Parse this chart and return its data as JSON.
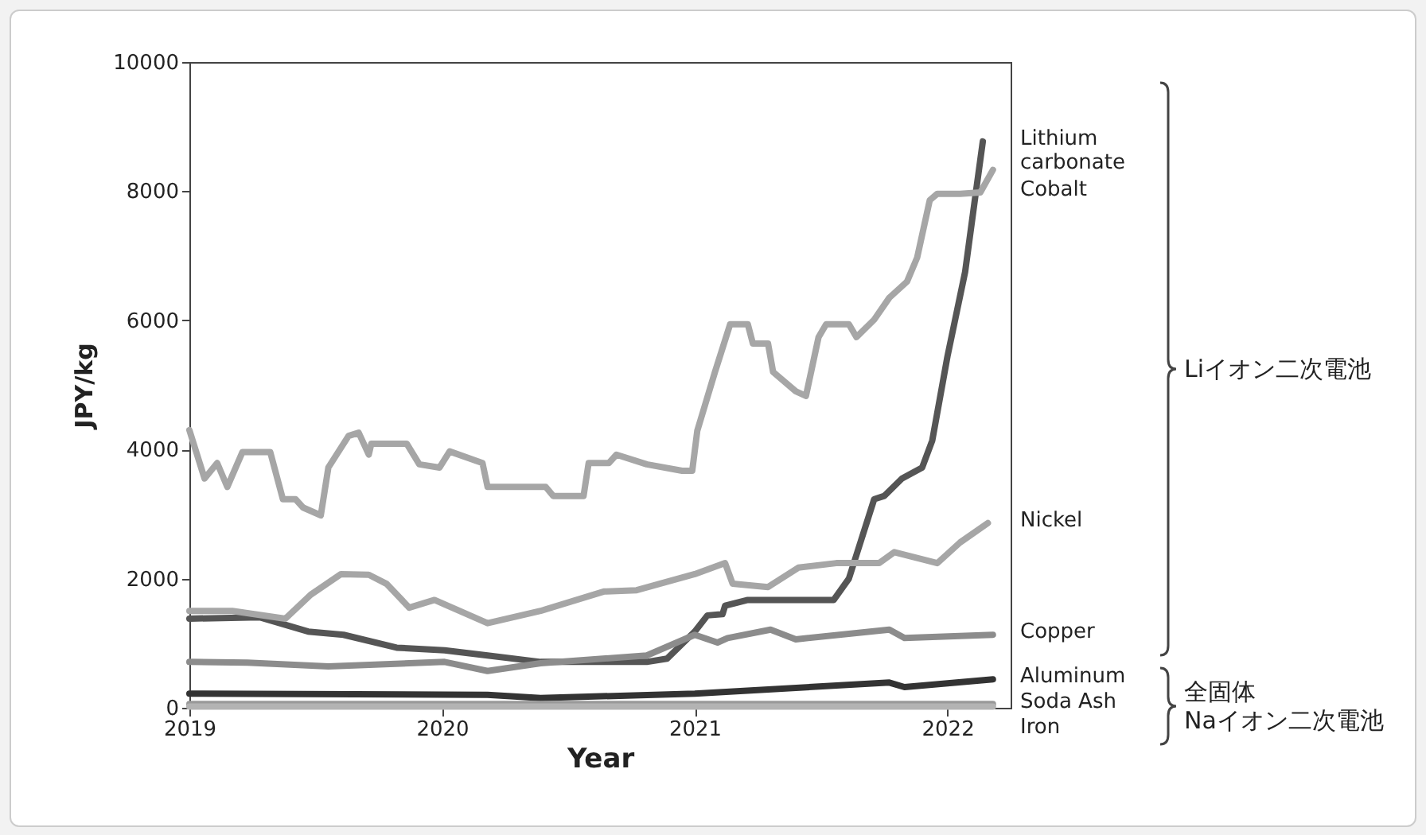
{
  "chart_data": {
    "type": "line",
    "xlabel": "Year",
    "ylabel": "JPY/kg",
    "xlim": [
      2019,
      2022.25
    ],
    "xticks": [
      2019,
      2020,
      2021,
      2022
    ],
    "ylim": [
      0,
      10000
    ],
    "yticks": [
      0,
      2000,
      4000,
      6000,
      8000,
      10000
    ],
    "grid": false,
    "legend": false,
    "marker": "none",
    "line_style": "solid",
    "annotations": [
      "Liイオン二次電池",
      "全固体\nNaイオン二次電池"
    ],
    "series": [
      {
        "name": "Lithium carbonate",
        "color": "#555555",
        "x": [
          2019,
          2019.28,
          2019.47,
          2019.61,
          2019.82,
          2020.01,
          2020.18,
          2020.39,
          2020.81,
          2020.89,
          2021,
          2021.05,
          2021.11,
          2021.12,
          2021.21,
          2021.55,
          2021.61,
          2021.71,
          2021.75,
          2021.82,
          2021.9,
          2021.94,
          2022,
          2022.07,
          2022.11,
          2022.14
        ],
        "values": [
          1380,
          1400,
          1180,
          1130,
          930,
          890,
          810,
          710,
          710,
          760,
          1180,
          1430,
          1450,
          1580,
          1670,
          1670,
          2000,
          3230,
          3280,
          3550,
          3720,
          4140,
          5440,
          6750,
          7910,
          8770
        ]
      },
      {
        "name": "Cobalt",
        "color": "#a6a6a6",
        "x": [
          2019,
          2019.06,
          2019.11,
          2019.15,
          2019.21,
          2019.32,
          2019.37,
          2019.42,
          2019.45,
          2019.52,
          2019.55,
          2019.63,
          2019.67,
          2019.71,
          2019.72,
          2019.86,
          2019.91,
          2019.99,
          2020.03,
          2020.16,
          2020.18,
          2020.41,
          2020.44,
          2020.56,
          2020.58,
          2020.66,
          2020.69,
          2020.81,
          2020.95,
          2020.99,
          2021.01,
          2021.08,
          2021.14,
          2021.21,
          2021.23,
          2021.29,
          2021.31,
          2021.4,
          2021.44,
          2021.49,
          2021.52,
          2021.61,
          2021.64,
          2021.71,
          2021.77,
          2021.84,
          2021.88,
          2021.93,
          2021.96,
          2022.05,
          2022.13,
          2022.18
        ],
        "values": [
          4300,
          3550,
          3790,
          3420,
          3960,
          3960,
          3230,
          3230,
          3100,
          2980,
          3720,
          4210,
          4260,
          3920,
          4090,
          4090,
          3770,
          3720,
          3970,
          3790,
          3420,
          3420,
          3280,
          3280,
          3790,
          3790,
          3920,
          3770,
          3670,
          3670,
          4290,
          5200,
          5940,
          5940,
          5640,
          5640,
          5200,
          4900,
          4830,
          5740,
          5940,
          5940,
          5740,
          6010,
          6350,
          6600,
          6970,
          7860,
          7960,
          7960,
          7980,
          8330
        ]
      },
      {
        "name": "Nickel",
        "color": "#a6a6a6",
        "x": [
          2019,
          2019.17,
          2019.38,
          2019.48,
          2019.6,
          2019.71,
          2019.78,
          2019.87,
          2019.97,
          2020.18,
          2020.39,
          2020.64,
          2020.77,
          2021,
          2021.12,
          2021.15,
          2021.29,
          2021.41,
          2021.56,
          2021.73,
          2021.79,
          2021.96,
          2022.05,
          2022.16
        ],
        "values": [
          1500,
          1500,
          1380,
          1750,
          2070,
          2060,
          1920,
          1550,
          1670,
          1310,
          1500,
          1800,
          1820,
          2070,
          2240,
          1920,
          1870,
          2170,
          2240,
          2240,
          2410,
          2240,
          2560,
          2860
        ]
      },
      {
        "name": "Copper",
        "color": "#8c8c8c",
        "x": [
          2019,
          2019.23,
          2019.55,
          2020.01,
          2020.18,
          2020.39,
          2020.81,
          2021,
          2021.09,
          2021.13,
          2021.3,
          2021.4,
          2021.77,
          2021.83,
          2022.18
        ],
        "values": [
          710,
          700,
          640,
          710,
          570,
          690,
          810,
          1130,
          1010,
          1080,
          1210,
          1060,
          1210,
          1080,
          1130
        ]
      },
      {
        "name": "Aluminum",
        "color": "#333333",
        "x": [
          2019,
          2020.18,
          2020.39,
          2021,
          2021.77,
          2021.83,
          2022.18
        ],
        "values": [
          220,
          200,
          150,
          220,
          390,
          320,
          440
        ]
      },
      {
        "name": "Soda Ash",
        "color": "#999999",
        "x": [
          2019,
          2022.18
        ],
        "values": [
          60,
          60
        ]
      },
      {
        "name": "Iron",
        "color": "#b3b3b3",
        "x": [
          2019,
          2022.18
        ],
        "values": [
          20,
          20
        ]
      }
    ]
  }
}
